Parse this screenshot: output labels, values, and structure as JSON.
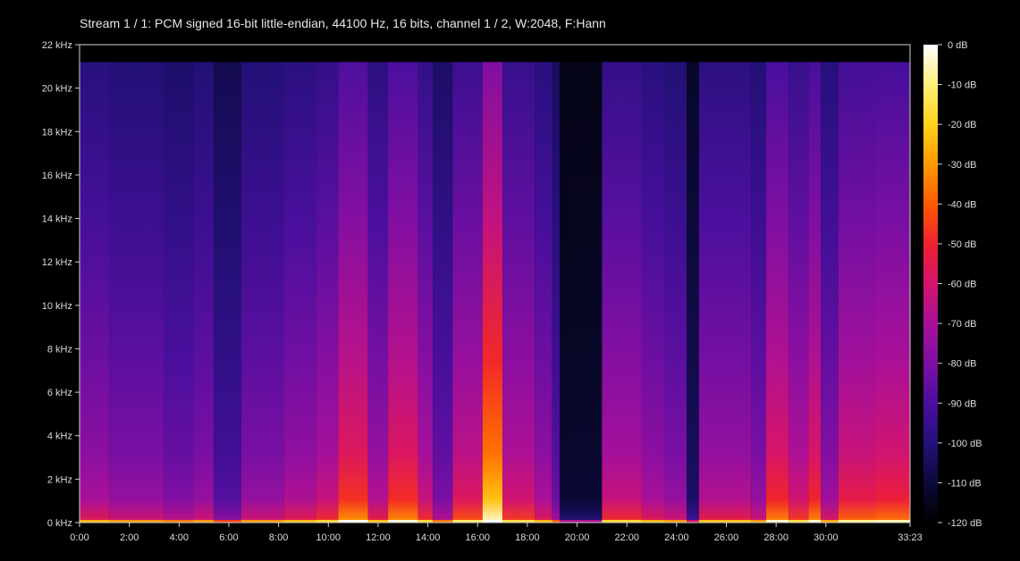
{
  "chart_data": {
    "type": "heatmap",
    "title": "Stream 1 / 1: PCM signed 16-bit little-endian, 44100 Hz, 16 bits, channel 1 / 2, W:2048, F:Hann",
    "x_axis": {
      "unit": "time (mm:ss)",
      "range": [
        "0:00",
        "33:23"
      ],
      "ticks": [
        "0:00",
        "2:00",
        "4:00",
        "6:00",
        "8:00",
        "10:00",
        "12:00",
        "14:00",
        "16:00",
        "18:00",
        "20:00",
        "22:00",
        "24:00",
        "26:00",
        "28:00",
        "30:00",
        "33:23"
      ]
    },
    "y_axis": {
      "unit": "frequency (kHz)",
      "range": [
        0,
        22
      ],
      "ticks": [
        "0 kHz",
        "2 kHz",
        "4 kHz",
        "6 kHz",
        "8 kHz",
        "10 kHz",
        "12 kHz",
        "14 kHz",
        "16 kHz",
        "18 kHz",
        "20 kHz",
        "22 kHz"
      ]
    },
    "colorbar": {
      "unit": "dB",
      "range": [
        -120,
        0
      ],
      "ticks": [
        "0 dB",
        "-10 dB",
        "-20 dB",
        "-30 dB",
        "-40 dB",
        "-50 dB",
        "-60 dB",
        "-70 dB",
        "-80 dB",
        "-90 dB",
        "-100 dB",
        "-110 dB",
        "-120 dB"
      ],
      "colors": [
        "#000000",
        "#0b0a3a",
        "#24107a",
        "#4a0f9e",
        "#7c0fa3",
        "#a8109a",
        "#d4146d",
        "#f0202f",
        "#ff5a00",
        "#ff9a00",
        "#ffd21a",
        "#ffef7a",
        "#ffffff"
      ]
    },
    "cutoff_khz": 21.2,
    "segments": [
      {
        "start_min": 0.0,
        "end_min": 1.2,
        "level": 0.44
      },
      {
        "start_min": 1.2,
        "end_min": 3.4,
        "level": 0.4
      },
      {
        "start_min": 3.4,
        "end_min": 4.6,
        "level": 0.36
      },
      {
        "start_min": 4.6,
        "end_min": 5.4,
        "level": 0.4
      },
      {
        "start_min": 5.4,
        "end_min": 6.5,
        "level": 0.28
      },
      {
        "start_min": 6.5,
        "end_min": 8.2,
        "level": 0.4
      },
      {
        "start_min": 8.2,
        "end_min": 9.5,
        "level": 0.45
      },
      {
        "start_min": 9.5,
        "end_min": 10.4,
        "level": 0.5
      },
      {
        "start_min": 10.4,
        "end_min": 11.6,
        "level": 0.64
      },
      {
        "start_min": 11.6,
        "end_min": 12.4,
        "level": 0.46
      },
      {
        "start_min": 12.4,
        "end_min": 13.6,
        "level": 0.63
      },
      {
        "start_min": 13.6,
        "end_min": 14.2,
        "level": 0.5
      },
      {
        "start_min": 14.2,
        "end_min": 15.0,
        "level": 0.35
      },
      {
        "start_min": 15.0,
        "end_min": 16.2,
        "level": 0.55
      },
      {
        "start_min": 16.2,
        "end_min": 17.0,
        "level": 0.85
      },
      {
        "start_min": 17.0,
        "end_min": 18.3,
        "level": 0.52
      },
      {
        "start_min": 18.3,
        "end_min": 19.0,
        "level": 0.44
      },
      {
        "start_min": 19.0,
        "end_min": 19.3,
        "level": 0.32
      },
      {
        "start_min": 19.3,
        "end_min": 21.0,
        "level": 0.08
      },
      {
        "start_min": 21.0,
        "end_min": 22.6,
        "level": 0.5
      },
      {
        "start_min": 22.6,
        "end_min": 23.5,
        "level": 0.44
      },
      {
        "start_min": 23.5,
        "end_min": 24.4,
        "level": 0.4
      },
      {
        "start_min": 24.4,
        "end_min": 24.9,
        "level": 0.15
      },
      {
        "start_min": 24.9,
        "end_min": 27.0,
        "level": 0.46
      },
      {
        "start_min": 27.0,
        "end_min": 27.6,
        "level": 0.4
      },
      {
        "start_min": 27.6,
        "end_min": 28.5,
        "level": 0.62
      },
      {
        "start_min": 28.5,
        "end_min": 29.3,
        "level": 0.52
      },
      {
        "start_min": 29.3,
        "end_min": 29.8,
        "level": 0.62
      },
      {
        "start_min": 29.8,
        "end_min": 30.5,
        "level": 0.42
      },
      {
        "start_min": 30.5,
        "end_min": 32.0,
        "level": 0.58
      },
      {
        "start_min": 32.0,
        "end_min": 33.38,
        "level": 0.6
      }
    ]
  }
}
